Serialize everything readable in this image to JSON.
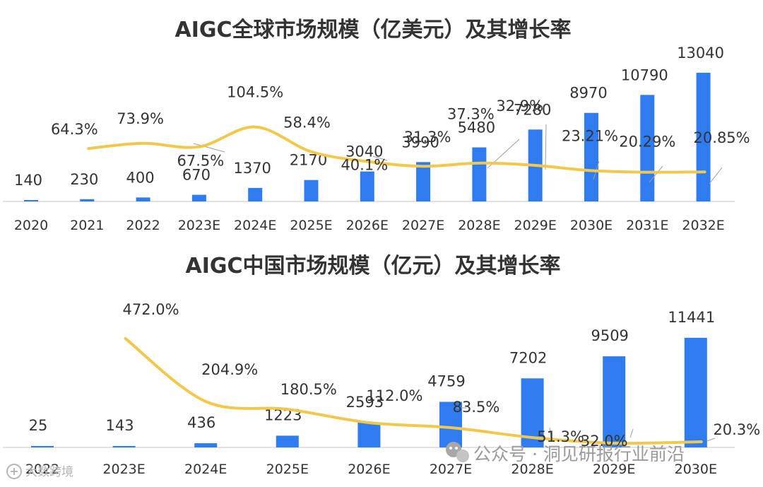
{
  "chart_data": [
    {
      "type": "bar+line",
      "title": "AIGC全球市场规模（亿美元）及其增长率",
      "categories": [
        "2020",
        "2021",
        "2022",
        "2023E",
        "2024E",
        "2025E",
        "2026E",
        "2027E",
        "2028E",
        "2029E",
        "2030E",
        "2031E",
        "2032E"
      ],
      "series": [
        {
          "name": "市场规模（亿美元）",
          "kind": "bar",
          "values": [
            140,
            230,
            400,
            670,
            1370,
            2170,
            3040,
            3990,
            5480,
            7280,
            8970,
            10790,
            13040
          ]
        },
        {
          "name": "增长率",
          "kind": "line",
          "values": [
            null,
            64.3,
            73.9,
            67.5,
            104.5,
            58.4,
            40.1,
            31.3,
            37.3,
            32.9,
            23.21,
            20.29,
            20.85
          ],
          "labels": [
            null,
            "64.3%",
            "73.9%",
            "67.5%",
            "104.5%",
            "58.4%",
            "40.1%",
            "31.3%",
            "37.3%",
            "32.9%",
            "23.21%",
            "20.29%",
            "20.85%"
          ]
        }
      ],
      "ylim": [
        0,
        14000
      ],
      "grid": false,
      "legend": "none"
    },
    {
      "type": "bar+line",
      "title": "AIGC中国市场规模（亿元）及其增长率",
      "categories": [
        "2022",
        "2023E",
        "2024E",
        "2025E",
        "2026E",
        "2027E",
        "2028E",
        "2029E",
        "2030E"
      ],
      "series": [
        {
          "name": "市场规模（亿元）",
          "kind": "bar",
          "values": [
            25,
            143,
            436,
            1223,
            2593,
            4759,
            7202,
            9509,
            11441
          ]
        },
        {
          "name": "增长率",
          "kind": "line",
          "values": [
            null,
            472.0,
            204.9,
            180.5,
            112.0,
            83.5,
            51.3,
            32.0,
            20.3
          ],
          "labels": [
            null,
            "472.0%",
            "204.9%",
            "180.5%",
            "112.0%",
            "83.5%",
            "51.3%",
            "32.0%",
            "20.3%"
          ]
        }
      ],
      "ylim": [
        0,
        12500
      ],
      "grid": false,
      "legend": "none"
    }
  ],
  "watermark": {
    "wechat_text": "公众号 · 洞见研报行业前沿",
    "corner_text": "大数跨境"
  },
  "colors": {
    "bar": "#2f7cf0",
    "line": "#f1c84b",
    "axis": "#d9d9d9",
    "leader": "#9e9e9e"
  }
}
